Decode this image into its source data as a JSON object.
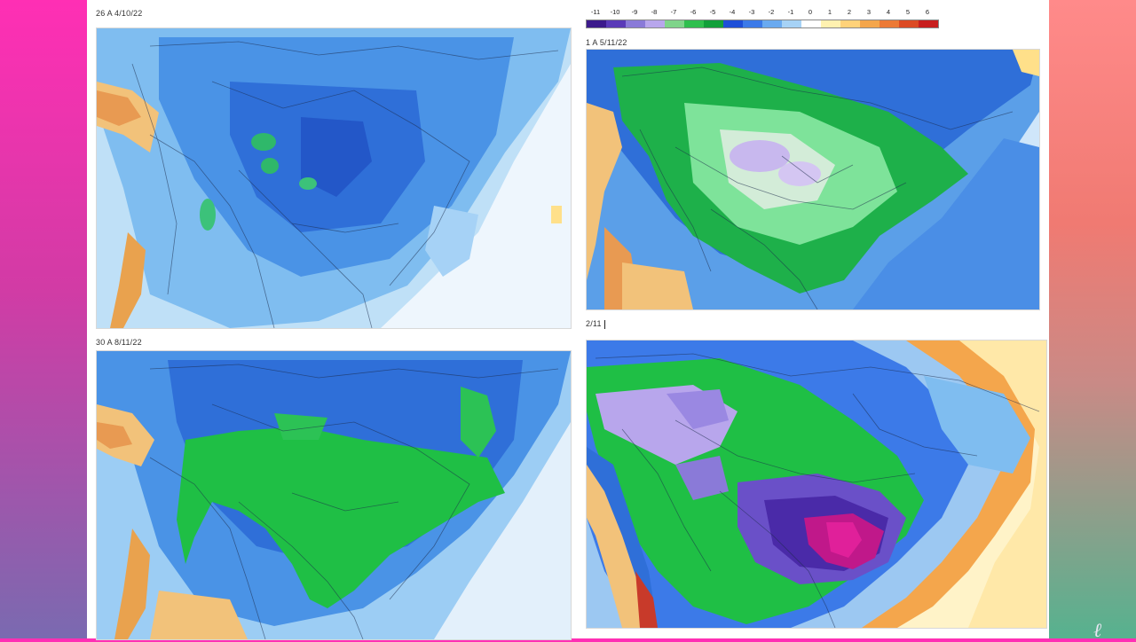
{
  "panels": [
    {
      "label": "26 A 4/10/22"
    },
    {
      "label": "1 A 5/11/22"
    },
    {
      "label": "30 A 8/11/22"
    },
    {
      "label": "2/11"
    }
  ],
  "scale": {
    "ticks": [
      "-11",
      "-10",
      "-9",
      "-8",
      "-7",
      "-6",
      "-5",
      "-4",
      "-3",
      "-2",
      "-1",
      "0",
      "1",
      "2",
      "3",
      "4",
      "5",
      "6"
    ],
    "colors": [
      "#3c1a8c",
      "#5a3ab8",
      "#8a7ad8",
      "#b8a6ec",
      "#7fd48a",
      "#2fbf4e",
      "#12a03a",
      "#1e4fd8",
      "#3c7ae8",
      "#6aaaf0",
      "#a6d2f6",
      "#ffffff",
      "#fff1b0",
      "#ffd27a",
      "#f4a64c",
      "#ec7a36",
      "#dc4a24",
      "#c81e1e"
    ]
  },
  "watermark": "ℓ"
}
